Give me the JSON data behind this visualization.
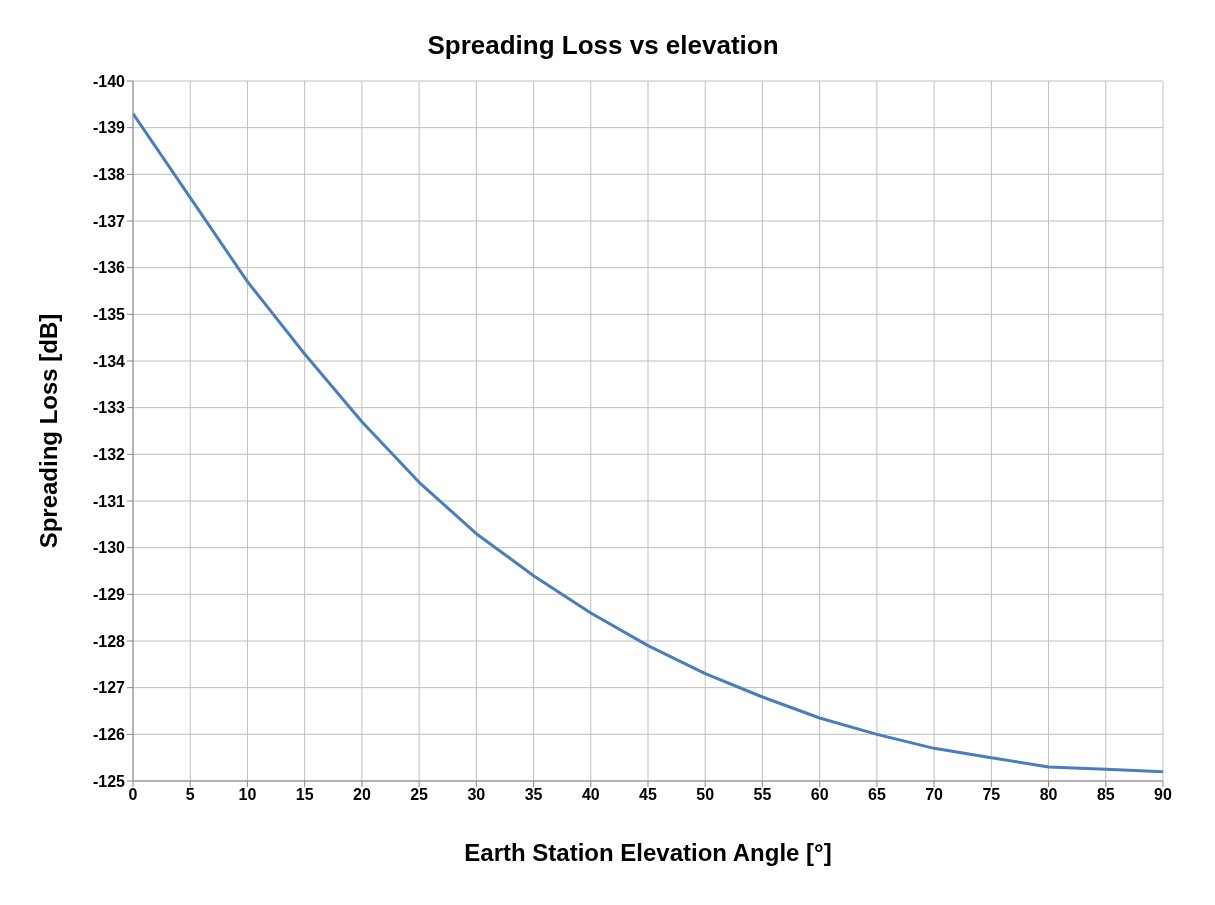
{
  "chart_data": {
    "type": "line",
    "title": "Spreading Loss vs elevation",
    "xlabel": "Earth Station Elevation Angle [°]",
    "ylabel": "Spreading Loss [dB]",
    "x": [
      0,
      5,
      10,
      15,
      20,
      25,
      30,
      35,
      40,
      45,
      50,
      55,
      60,
      65,
      70,
      75,
      80,
      85,
      90
    ],
    "series": [
      {
        "color": "#4a7ebb",
        "values": [
          -139.3,
          -137.5,
          -135.7,
          -134.15,
          -132.7,
          -131.4,
          -130.3,
          -129.4,
          -128.6,
          -127.9,
          -127.3,
          -126.8,
          -126.35,
          -126.0,
          -125.7,
          -125.5,
          -125.3,
          -125.25,
          -125.2
        ]
      }
    ],
    "xlim": [
      0,
      90
    ],
    "xticks": [
      0,
      5,
      10,
      15,
      20,
      25,
      30,
      35,
      40,
      45,
      50,
      55,
      60,
      65,
      70,
      75,
      80,
      85,
      90
    ],
    "ylim": [
      -125,
      -140
    ],
    "yticks": [
      -140,
      -139,
      -138,
      -137,
      -136,
      -135,
      -134,
      -133,
      -132,
      -131,
      -130,
      -129,
      -128,
      -127,
      -126,
      -125
    ],
    "grid": true,
    "legend": false,
    "marker": "none",
    "line_style": "solid"
  }
}
